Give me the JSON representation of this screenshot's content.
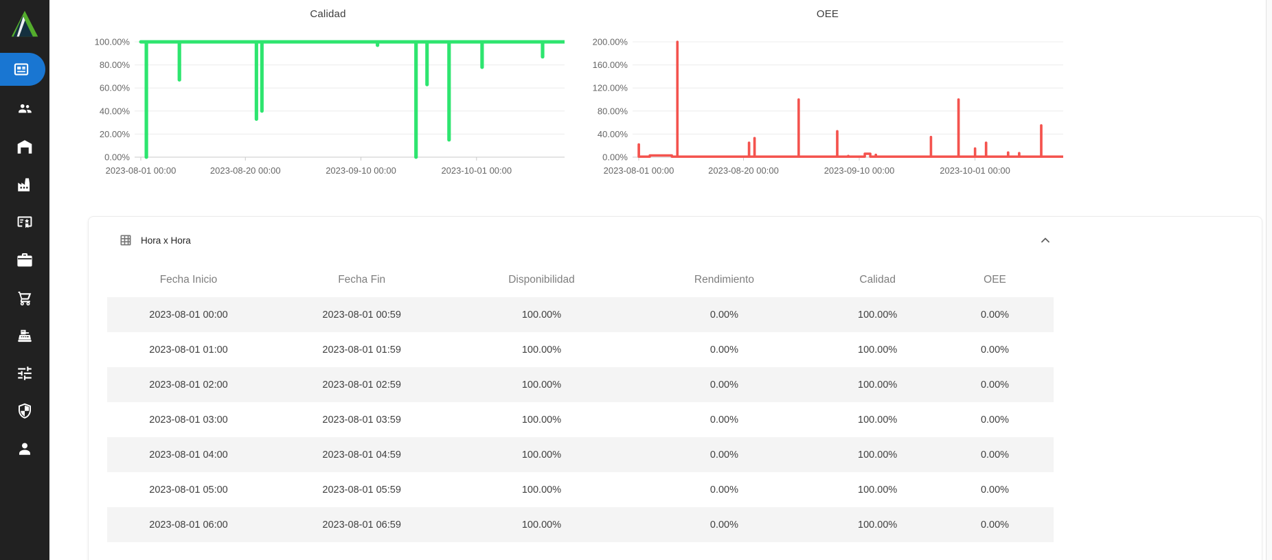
{
  "sidebar": {
    "background": "#212121",
    "active_color": "#1976d2",
    "logo_icon": "triangle-logo",
    "items": [
      {
        "icon": "dashboard-news",
        "active": true
      },
      {
        "icon": "people",
        "active": false
      },
      {
        "icon": "warehouse",
        "active": false
      },
      {
        "icon": "factory",
        "active": false
      },
      {
        "icon": "certificate",
        "active": false
      },
      {
        "icon": "briefcase",
        "active": false
      },
      {
        "icon": "shopping-cart",
        "active": false
      },
      {
        "icon": "cash-register",
        "active": false
      },
      {
        "icon": "tune-sliders",
        "active": false
      },
      {
        "icon": "shield",
        "active": false
      },
      {
        "icon": "person",
        "active": false
      }
    ]
  },
  "chart_data": [
    {
      "type": "line",
      "title": "Calidad",
      "color": "#2ee56f",
      "stroke_width": 5,
      "baseline": 100,
      "grid": true,
      "y_axis": {
        "min": 0,
        "max": 100,
        "step": 20,
        "labels": [
          "100.00%",
          "80.00%",
          "60.00%",
          "40.00%",
          "20.00%",
          "0.00%"
        ]
      },
      "x_axis": {
        "start_date": "2023-08-01",
        "end_date": "2023-10-17",
        "tick_labels": [
          {
            "text": "2023-08-01 00:00",
            "date": "2023-08-01"
          },
          {
            "text": "2023-08-20 00:00",
            "date": "2023-08-20"
          },
          {
            "text": "2023-09-10 00:00",
            "date": "2023-09-10"
          },
          {
            "text": "2023-10-01 00:00",
            "date": "2023-10-01"
          }
        ]
      },
      "points": [
        {
          "date": "2023-08-02",
          "value": 0
        },
        {
          "date": "2023-08-08",
          "value": 67
        },
        {
          "date": "2023-08-22",
          "value": 33
        },
        {
          "date": "2023-08-23",
          "value": 40
        },
        {
          "date": "2023-09-13",
          "value": 97
        },
        {
          "date": "2023-09-20",
          "value": 0
        },
        {
          "date": "2023-09-22",
          "value": 63
        },
        {
          "date": "2023-09-26",
          "value": 15
        },
        {
          "date": "2023-10-02",
          "value": 78
        },
        {
          "date": "2023-10-13",
          "value": 87
        }
      ]
    },
    {
      "type": "line",
      "title": "OEE",
      "color": "#f4534e",
      "stroke_width": 3.5,
      "baseline": 1,
      "grid": true,
      "y_axis": {
        "min": 0,
        "max": 200,
        "step": 40,
        "labels": [
          "200.00%",
          "160.00%",
          "120.00%",
          "80.00%",
          "40.00%",
          "0.00%"
        ]
      },
      "x_axis": {
        "start_date": "2023-08-01",
        "end_date": "2023-10-17",
        "tick_labels": [
          {
            "text": "2023-08-01 00:00",
            "date": "2023-08-01"
          },
          {
            "text": "2023-08-20 00:00",
            "date": "2023-08-20"
          },
          {
            "text": "2023-09-10 00:00",
            "date": "2023-09-10"
          },
          {
            "text": "2023-10-01 00:00",
            "date": "2023-10-01"
          }
        ]
      },
      "points": [
        {
          "date": "2023-08-01",
          "value": 22
        },
        {
          "date": "2023-08-03",
          "value": 3,
          "hold_days": 4
        },
        {
          "date": "2023-08-08",
          "value": 200
        },
        {
          "date": "2023-08-21",
          "value": 25
        },
        {
          "date": "2023-08-22",
          "value": 33
        },
        {
          "date": "2023-08-30",
          "value": 100
        },
        {
          "date": "2023-09-06",
          "value": 45
        },
        {
          "date": "2023-09-08",
          "value": 2
        },
        {
          "date": "2023-09-11",
          "value": 6,
          "hold_days": 1
        },
        {
          "date": "2023-09-13",
          "value": 4
        },
        {
          "date": "2023-09-23",
          "value": 35
        },
        {
          "date": "2023-09-28",
          "value": 100
        },
        {
          "date": "2023-10-01",
          "value": 15
        },
        {
          "date": "2023-10-03",
          "value": 25
        },
        {
          "date": "2023-10-07",
          "value": 8
        },
        {
          "date": "2023-10-09",
          "value": 7
        },
        {
          "date": "2023-10-13",
          "value": 55
        }
      ]
    }
  ],
  "table": {
    "title": "Hora x Hora",
    "title_icon": "grid-table",
    "collapse_icon": "chevron-up",
    "columns": [
      "Fecha Inicio",
      "Fecha Fin",
      "Disponibilidad",
      "Rendimiento",
      "Calidad",
      "OEE"
    ],
    "rows": [
      [
        "2023-08-01 00:00",
        "2023-08-01 00:59",
        "100.00%",
        "0.00%",
        "100.00%",
        "0.00%"
      ],
      [
        "2023-08-01 01:00",
        "2023-08-01 01:59",
        "100.00%",
        "0.00%",
        "100.00%",
        "0.00%"
      ],
      [
        "2023-08-01 02:00",
        "2023-08-01 02:59",
        "100.00%",
        "0.00%",
        "100.00%",
        "0.00%"
      ],
      [
        "2023-08-01 03:00",
        "2023-08-01 03:59",
        "100.00%",
        "0.00%",
        "100.00%",
        "0.00%"
      ],
      [
        "2023-08-01 04:00",
        "2023-08-01 04:59",
        "100.00%",
        "0.00%",
        "100.00%",
        "0.00%"
      ],
      [
        "2023-08-01 05:00",
        "2023-08-01 05:59",
        "100.00%",
        "0.00%",
        "100.00%",
        "0.00%"
      ],
      [
        "2023-08-01 06:00",
        "2023-08-01 06:59",
        "100.00%",
        "0.00%",
        "100.00%",
        "0.00%"
      ]
    ]
  }
}
